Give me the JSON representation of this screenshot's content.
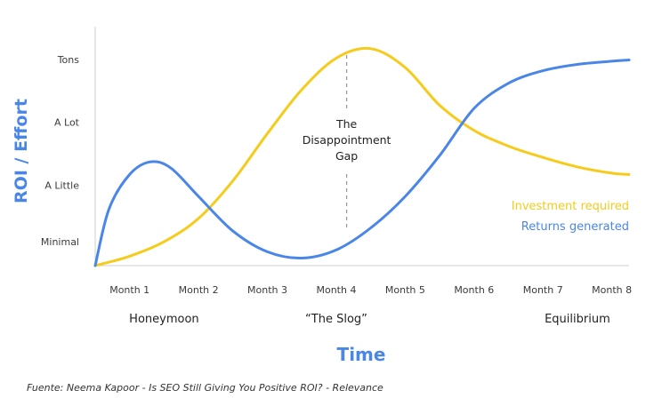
{
  "chart_data": {
    "type": "line",
    "title": "",
    "xlabel": "Time",
    "ylabel": "ROI / Effort",
    "categories": [
      "Month 1",
      "Month 2",
      "Month 3",
      "Month 4",
      "Month 5",
      "Month 6",
      "Month 7",
      "Month 8"
    ],
    "y_ticks": [
      "Minimal",
      "A Little",
      "A Lot",
      "Tons"
    ],
    "x_range": [
      1,
      8.75
    ],
    "y_range": [
      0,
      3.8
    ],
    "phases": [
      {
        "label": "Honeymoon",
        "x": 2
      },
      {
        "label": "“The Slog”",
        "x": 4.5
      },
      {
        "label": "Equilibrium",
        "x": 8
      }
    ],
    "annotation": {
      "lines": [
        "The",
        "Disappointment",
        "Gap"
      ],
      "x": 4.65
    },
    "series": [
      {
        "name": "Investment required",
        "color": "#F5CB1C",
        "points": [
          [
            1,
            0
          ],
          [
            1.5,
            0.15
          ],
          [
            2,
            0.38
          ],
          [
            2.5,
            0.75
          ],
          [
            3,
            1.35
          ],
          [
            3.5,
            2.1
          ],
          [
            4,
            2.8
          ],
          [
            4.5,
            3.3
          ],
          [
            5,
            3.45
          ],
          [
            5.5,
            3.15
          ],
          [
            6,
            2.55
          ],
          [
            6.5,
            2.15
          ],
          [
            7,
            1.9
          ],
          [
            7.5,
            1.72
          ],
          [
            8,
            1.57
          ],
          [
            8.5,
            1.47
          ],
          [
            8.75,
            1.45
          ]
        ]
      },
      {
        "name": "Returns generated",
        "color": "#4A86E8",
        "points": [
          [
            1,
            0
          ],
          [
            1.2,
            0.9
          ],
          [
            1.5,
            1.45
          ],
          [
            1.8,
            1.65
          ],
          [
            2.1,
            1.55
          ],
          [
            2.5,
            1.1
          ],
          [
            3,
            0.55
          ],
          [
            3.5,
            0.22
          ],
          [
            4,
            0.12
          ],
          [
            4.5,
            0.25
          ],
          [
            5,
            0.6
          ],
          [
            5.5,
            1.1
          ],
          [
            6,
            1.75
          ],
          [
            6.5,
            2.5
          ],
          [
            7,
            2.9
          ],
          [
            7.5,
            3.1
          ],
          [
            8,
            3.2
          ],
          [
            8.5,
            3.25
          ],
          [
            8.75,
            3.27
          ]
        ]
      }
    ],
    "grid": false,
    "legend_position": "bottom-right"
  },
  "source": "Fuente: Neema Kapoor - Is SEO Still Giving You Positive ROI? - Relevance"
}
